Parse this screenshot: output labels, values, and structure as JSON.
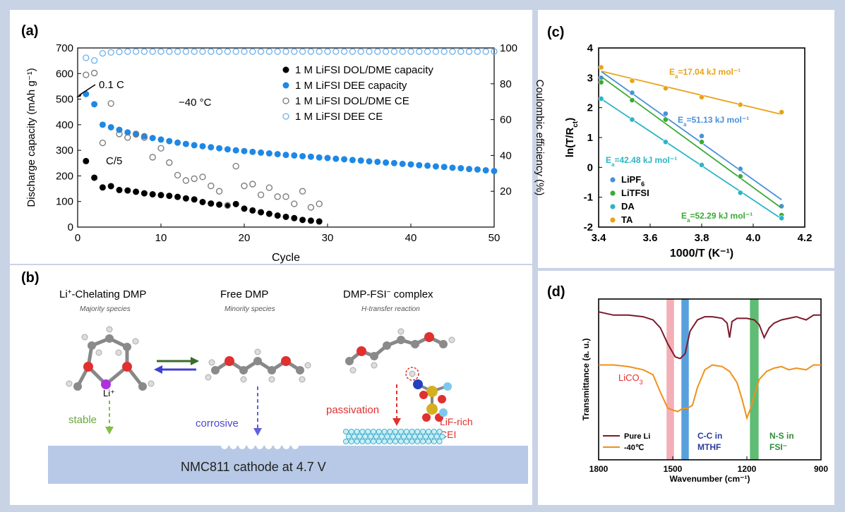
{
  "panels": {
    "a": {
      "label": "(a)",
      "annotation_01c": "0.1 C",
      "annotation_c5": "C/5",
      "annotation_temp": "−40 °C",
      "legend": [
        "1 M LiFSI DOL/DME capacity",
        "1 M LiFSI DEE capacity",
        "1 M LiFSI DOL/DME CE",
        "1 M LiFSI DEE CE"
      ]
    },
    "b": {
      "label": "(b)",
      "species": [
        {
          "title_main": "Li",
          "title_sup": "+",
          "title_rest": "-Chelating DMP",
          "subtitle": "Majority species"
        },
        {
          "title_main": "Free DMP",
          "title_sup": "",
          "title_rest": "",
          "subtitle": "Minority species"
        },
        {
          "title_main": "DMP-FSI",
          "title_sup": "−",
          "title_rest": " complex",
          "subtitle": "H-transfer reaction"
        }
      ],
      "li_label": "Li⁺",
      "arrows": [
        "stable",
        "corrosive",
        "passivation"
      ],
      "cei_line1": "LiF-rich",
      "cei_line2": "CEI",
      "cathode": "NMC811 cathode at 4.7 V"
    },
    "c": {
      "label": "(c)"
    },
    "d": {
      "label": "(d)",
      "band_labels": {
        "lico3_main": "LiCO",
        "lico3_sub": "3",
        "cc_line1": "C-C in",
        "cc_line2": "MTHF",
        "ns_line1": "N-S in",
        "ns_line2": "FSI⁻"
      },
      "legend": [
        "Pure Li",
        "-40℃"
      ]
    }
  },
  "chart_data": [
    {
      "panel": "a",
      "type": "scatter",
      "xlabel": "Cycle",
      "ylabel": "Discharge capacity (mAh g⁻¹)",
      "y2label": "Coulombic efficiency (%)",
      "xlim": [
        0,
        50
      ],
      "ylim": [
        0,
        700
      ],
      "y2lim": [
        0,
        100
      ],
      "xticks": [
        0,
        10,
        20,
        30,
        40,
        50
      ],
      "yticks": [
        0,
        100,
        200,
        300,
        400,
        500,
        600,
        700
      ],
      "y2ticks": [
        20,
        40,
        60,
        80,
        100
      ],
      "series": [
        {
          "name": "1 M LiFSI DOL/DME capacity",
          "axis": "left",
          "color": "#000000",
          "filled": true,
          "x": [
            1,
            2,
            3,
            4,
            5,
            6,
            7,
            8,
            9,
            10,
            11,
            12,
            13,
            14,
            15,
            16,
            17,
            18,
            19,
            20,
            21,
            22,
            23,
            24,
            25,
            26,
            27,
            28,
            29
          ],
          "y": [
            258,
            193,
            155,
            160,
            145,
            143,
            138,
            132,
            128,
            125,
            122,
            118,
            112,
            108,
            98,
            92,
            88,
            85,
            90,
            72,
            65,
            58,
            52,
            45,
            40,
            35,
            28,
            25,
            22
          ]
        },
        {
          "name": "1 M LiFSI DEE capacity",
          "axis": "left",
          "color": "#1e88e5",
          "filled": true,
          "x": [
            1,
            2,
            3,
            4,
            5,
            6,
            7,
            8,
            9,
            10,
            11,
            12,
            13,
            14,
            15,
            16,
            17,
            18,
            19,
            20,
            21,
            22,
            23,
            24,
            25,
            26,
            27,
            28,
            29,
            30,
            31,
            32,
            33,
            34,
            35,
            36,
            37,
            38,
            39,
            40,
            41,
            42,
            43,
            44,
            45,
            46,
            47,
            48,
            49,
            50
          ],
          "y": [
            520,
            480,
            400,
            390,
            380,
            370,
            362,
            355,
            348,
            342,
            336,
            330,
            325,
            320,
            316,
            312,
            308,
            304,
            300,
            297,
            294,
            291,
            288,
            285,
            282,
            280,
            277,
            275,
            272,
            270,
            267,
            265,
            262,
            260,
            257,
            255,
            252,
            250,
            247,
            245,
            242,
            240,
            237,
            235,
            232,
            230,
            227,
            225,
            222,
            219
          ]
        },
        {
          "name": "1 M LiFSI DOL/DME CE",
          "axis": "right",
          "color": "#777777",
          "filled": false,
          "x": [
            1,
            2,
            3,
            4,
            5,
            6,
            7,
            8,
            9,
            10,
            11,
            12,
            13,
            14,
            15,
            16,
            17,
            18,
            19,
            20,
            21,
            22,
            23,
            24,
            25,
            26,
            27,
            28,
            29
          ],
          "y": [
            85,
            86,
            47,
            69,
            52,
            50,
            52,
            50,
            39,
            44,
            36,
            29,
            26,
            27,
            28,
            23,
            20,
            12,
            34,
            23,
            24,
            18,
            22,
            17,
            17,
            13,
            20,
            11,
            13
          ]
        },
        {
          "name": "1 M LiFSI DEE CE",
          "axis": "right",
          "color": "#6ab0ee",
          "filled": false,
          "x": [
            1,
            2,
            3,
            4,
            5,
            6,
            7,
            8,
            9,
            10,
            11,
            12,
            13,
            14,
            15,
            16,
            17,
            18,
            19,
            20,
            21,
            22,
            23,
            24,
            25,
            26,
            27,
            28,
            29,
            30,
            31,
            32,
            33,
            34,
            35,
            36,
            37,
            38,
            39,
            40,
            41,
            42,
            43,
            44,
            45,
            46,
            47,
            48,
            49,
            50
          ],
          "y": [
            94.5,
            93,
            97,
            97.5,
            97.8,
            98,
            98,
            98,
            98,
            98,
            98,
            98,
            98,
            98,
            98,
            98,
            98,
            98,
            98,
            98,
            98,
            98,
            98,
            98,
            98,
            98,
            98,
            98,
            98,
            98,
            98,
            98,
            98,
            98,
            98,
            98,
            98,
            98,
            98,
            98,
            98,
            98,
            98,
            98,
            98,
            98,
            98,
            98,
            98,
            98
          ]
        }
      ]
    },
    {
      "panel": "c",
      "type": "scatter",
      "xlabel": "1000/T (K⁻¹)",
      "ylabel": "ln(T/R",
      "ylabel_sub": "ct",
      "ylabel_end": ")",
      "xlim": [
        3.4,
        4.2
      ],
      "ylim": [
        -2,
        4
      ],
      "xticks": [
        3.4,
        3.6,
        3.8,
        4.0,
        4.2
      ],
      "yticks": [
        -2,
        -1,
        0,
        1,
        2,
        3,
        4
      ],
      "series": [
        {
          "name": "LiPF",
          "name_sub": "6",
          "color": "#4a90d9",
          "x": [
            3.41,
            3.53,
            3.66,
            3.8,
            3.95,
            4.11
          ],
          "y": [
            3.0,
            2.5,
            1.8,
            1.05,
            -0.05,
            -1.3
          ],
          "ea_main": "E",
          "ea_sub": "a",
          "ea_rest": "=51.13 kJ mol⁻¹"
        },
        {
          "name": "LiTFSI",
          "name_sub": "",
          "color": "#3aaa35",
          "x": [
            3.41,
            3.53,
            3.66,
            3.8,
            3.95,
            4.11
          ],
          "y": [
            2.85,
            2.25,
            1.6,
            0.85,
            -0.3,
            -1.6
          ],
          "ea_main": "E",
          "ea_sub": "a",
          "ea_rest": "=52.29 kJ mol⁻¹"
        },
        {
          "name": "DA",
          "name_sub": "",
          "color": "#2bb5c5",
          "x": [
            3.41,
            3.53,
            3.66,
            3.8,
            3.95,
            4.11
          ],
          "y": [
            2.3,
            1.6,
            0.85,
            0.08,
            -0.85,
            -1.7
          ],
          "ea_main": "E",
          "ea_sub": "a",
          "ea_rest": "=42.48 kJ mol⁻¹"
        },
        {
          "name": "TA",
          "name_sub": "",
          "color": "#e8a317",
          "x": [
            3.41,
            3.53,
            3.66,
            3.8,
            3.95,
            4.11
          ],
          "y": [
            3.35,
            2.9,
            2.65,
            2.35,
            2.1,
            1.85
          ],
          "ea_main": "E",
          "ea_sub": "a",
          "ea_rest": "=17.04 kJ mol⁻¹"
        }
      ]
    },
    {
      "panel": "d",
      "type": "line",
      "xlabel": "Wavenumber (cm⁻¹)",
      "ylabel": "Transmittance (a. u.)",
      "xlim": [
        1800,
        900
      ],
      "xticks": [
        1800,
        1500,
        1200,
        900
      ],
      "bands": [
        {
          "center": 1510,
          "width": 30,
          "color": "#f2a0a8"
        },
        {
          "center": 1450,
          "width": 30,
          "color": "#3a8fd6"
        },
        {
          "center": 1170,
          "width": 35,
          "color": "#43b05c"
        }
      ],
      "series": [
        {
          "name": "Pure Li",
          "color": "#7b1a2a",
          "x": [
            1800,
            1740,
            1680,
            1620,
            1580,
            1550,
            1520,
            1490,
            1470,
            1450,
            1430,
            1400,
            1370,
            1340,
            1300,
            1280,
            1270,
            1260,
            1240,
            1200,
            1170,
            1150,
            1130,
            1110,
            1090,
            1060,
            1030,
            1000,
            960,
            930,
            900
          ],
          "y": [
            0.92,
            0.9,
            0.9,
            0.89,
            0.87,
            0.82,
            0.72,
            0.64,
            0.63,
            0.66,
            0.8,
            0.87,
            0.89,
            0.89,
            0.88,
            0.85,
            0.76,
            0.86,
            0.88,
            0.88,
            0.87,
            0.84,
            0.76,
            0.82,
            0.85,
            0.87,
            0.88,
            0.89,
            0.87,
            0.9,
            0.9
          ]
        },
        {
          "name": "-40℃",
          "color": "#f0901a",
          "x": [
            1800,
            1740,
            1680,
            1620,
            1580,
            1550,
            1520,
            1500,
            1480,
            1460,
            1440,
            1420,
            1400,
            1370,
            1340,
            1300,
            1270,
            1240,
            1220,
            1200,
            1185,
            1170,
            1150,
            1120,
            1090,
            1060,
            1030,
            1000,
            960,
            930,
            900
          ],
          "y": [
            0.59,
            0.59,
            0.58,
            0.56,
            0.53,
            0.42,
            0.32,
            0.31,
            0.3,
            0.32,
            0.32,
            0.34,
            0.45,
            0.56,
            0.59,
            0.58,
            0.55,
            0.48,
            0.38,
            0.26,
            0.32,
            0.4,
            0.5,
            0.55,
            0.57,
            0.58,
            0.56,
            0.57,
            0.56,
            0.59,
            0.59
          ]
        }
      ]
    }
  ]
}
